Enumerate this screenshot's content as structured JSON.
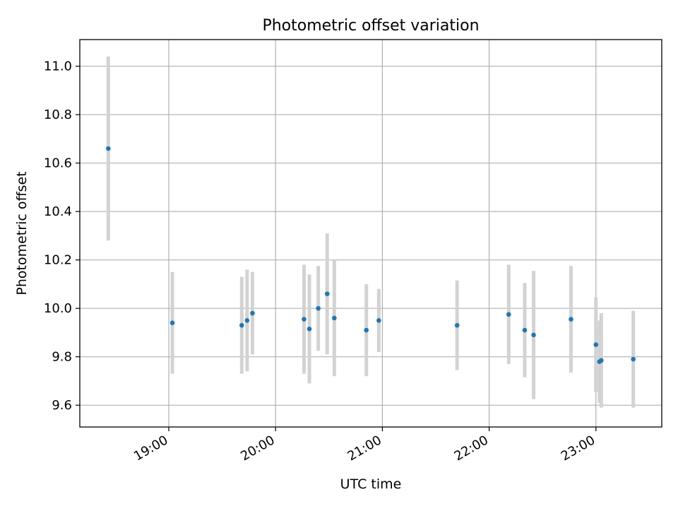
{
  "chart_data": {
    "type": "scatter",
    "title": "Photometric offset variation",
    "xlabel": "UTC time",
    "ylabel": "Photometric offset",
    "x_axis_type": "time",
    "xlim": [
      "18:10",
      "23:37"
    ],
    "ylim": [
      9.51,
      11.11
    ],
    "x_ticks": [
      "19:00",
      "20:00",
      "21:00",
      "22:00",
      "23:00"
    ],
    "y_ticks": [
      9.6,
      9.8,
      10.0,
      10.2,
      10.4,
      10.6,
      10.8,
      11.0
    ],
    "y_tick_labels": [
      "9.6",
      "9.8",
      "10.0",
      "10.2",
      "10.4",
      "10.6",
      "10.8",
      "11.0"
    ],
    "grid": true,
    "marker_color": "#1f77b4",
    "errorbar_color": "#d3d3d3",
    "points": [
      {
        "x": "18:26",
        "y": 10.66,
        "yerr": 0.38
      },
      {
        "x": "19:02",
        "y": 9.94,
        "yerr": 0.21
      },
      {
        "x": "19:41",
        "y": 9.93,
        "yerr": 0.2
      },
      {
        "x": "19:44",
        "y": 9.95,
        "yerr": 0.21
      },
      {
        "x": "19:47",
        "y": 9.98,
        "yerr": 0.17
      },
      {
        "x": "20:16",
        "y": 9.955,
        "yerr": 0.225
      },
      {
        "x": "20:19",
        "y": 9.915,
        "yerr": 0.225
      },
      {
        "x": "20:24",
        "y": 10.0,
        "yerr": 0.175
      },
      {
        "x": "20:29",
        "y": 10.06,
        "yerr": 0.25
      },
      {
        "x": "20:33",
        "y": 9.96,
        "yerr": 0.24
      },
      {
        "x": "20:51",
        "y": 9.91,
        "yerr": 0.19
      },
      {
        "x": "20:58",
        "y": 9.95,
        "yerr": 0.13
      },
      {
        "x": "21:42",
        "y": 9.93,
        "yerr": 0.185
      },
      {
        "x": "22:11",
        "y": 9.975,
        "yerr": 0.205
      },
      {
        "x": "22:20",
        "y": 9.91,
        "yerr": 0.195
      },
      {
        "x": "22:25",
        "y": 9.89,
        "yerr": 0.265
      },
      {
        "x": "22:46",
        "y": 9.955,
        "yerr": 0.22
      },
      {
        "x": "23:00",
        "y": 9.85,
        "yerr": 0.195
      },
      {
        "x": "23:02",
        "y": 9.78,
        "yerr": 0.17
      },
      {
        "x": "23:03",
        "y": 9.785,
        "yerr": 0.195
      },
      {
        "x": "23:21",
        "y": 9.79,
        "yerr": 0.2
      }
    ]
  }
}
